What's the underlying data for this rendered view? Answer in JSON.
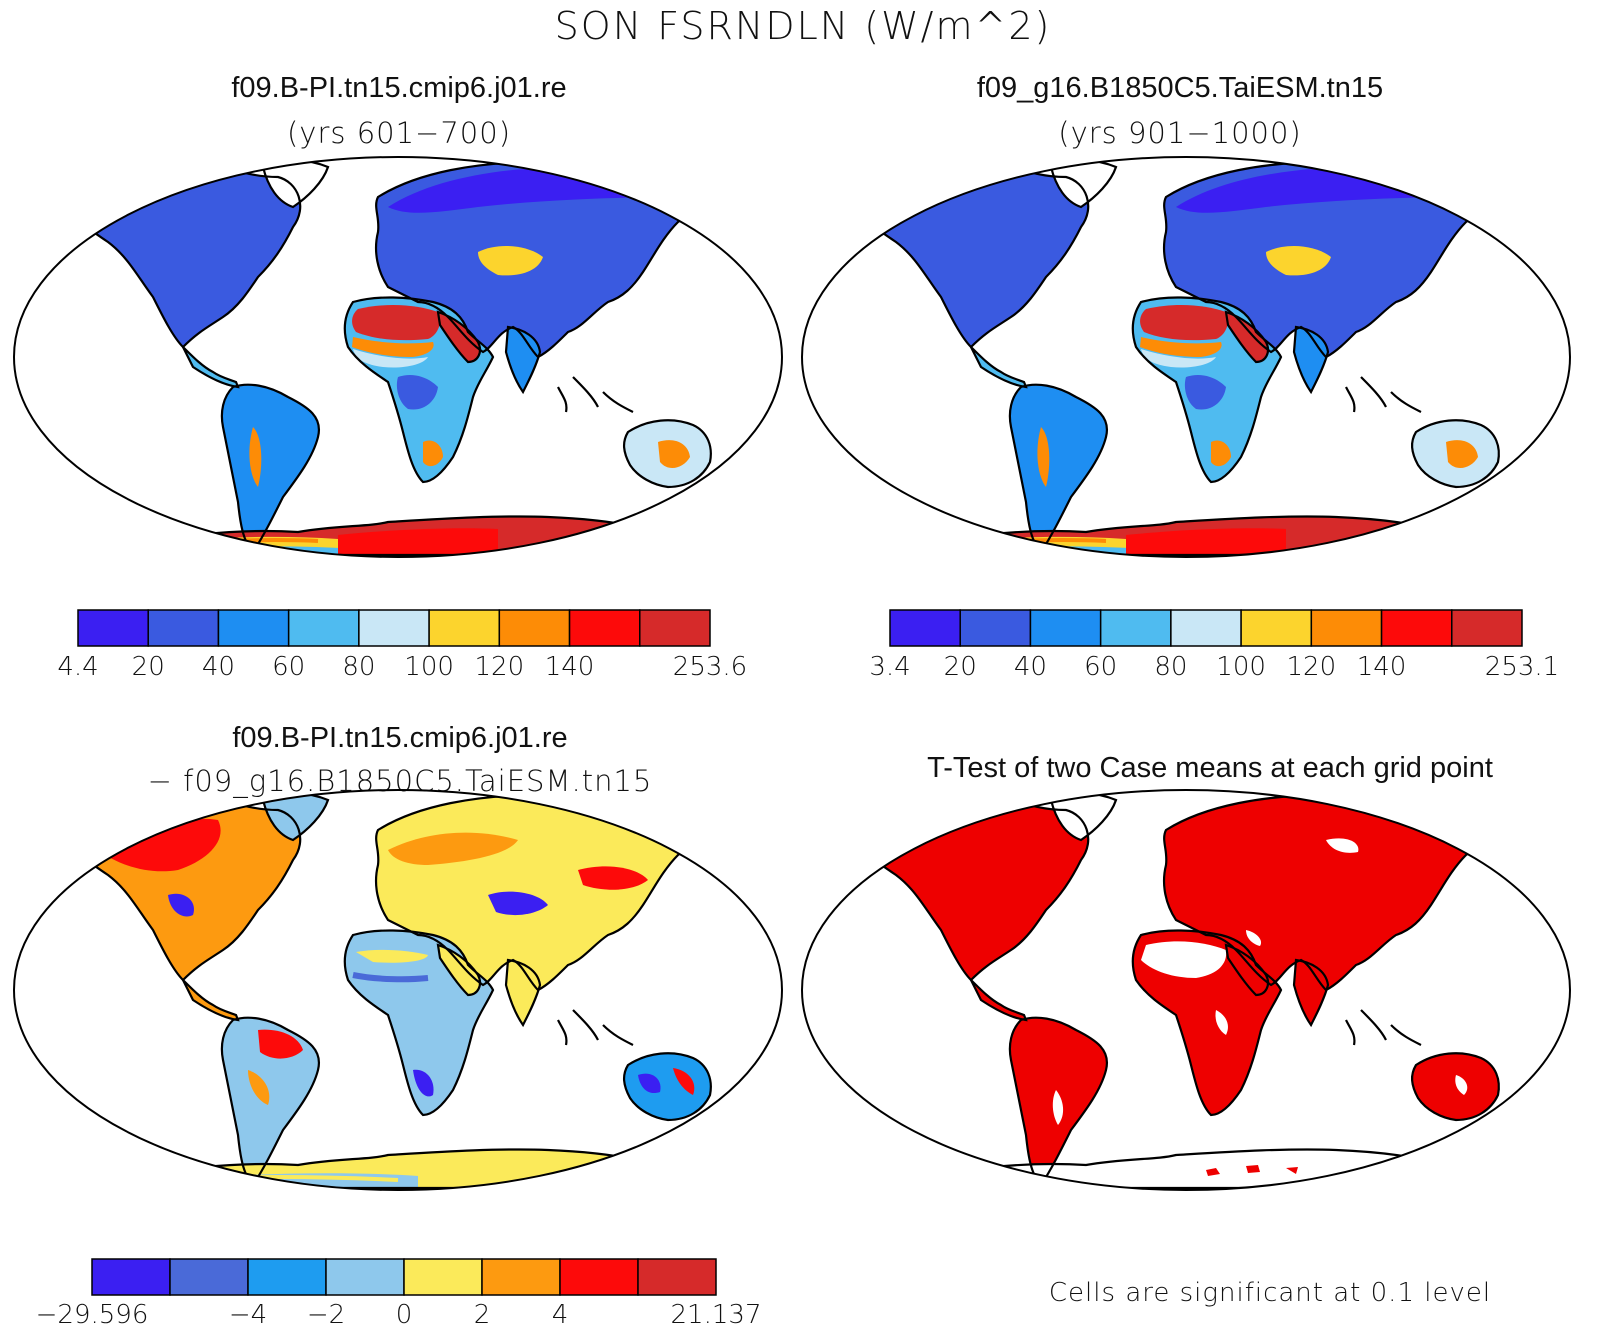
{
  "main_title": "SON FSRNDLN (W/m^2)",
  "panels": [
    {
      "title": "f09.B-PI.tn15.cmip6.j01.re",
      "subtitle": "(yrs 601−700)",
      "type": "mean"
    },
    {
      "title": "f09_g16.B1850C5.TaiESM.tn15",
      "subtitle": "(yrs 901−1000)",
      "type": "mean"
    },
    {
      "title": "f09.B-PI.tn15.cmip6.j01.re",
      "subtitle": "− f09_g16.B1850C5.TaiESM.tn15",
      "type": "difference"
    },
    {
      "title": "T-Test of two Case means at each grid point",
      "type": "ttest",
      "note": "Cells are significant at 0.1 level"
    }
  ],
  "colorbars": [
    {
      "colors": [
        "#3b1ff2",
        "#3a5ae0",
        "#1e8ef2",
        "#4fbbf0",
        "#c9e7f6",
        "#fcd42d",
        "#fd8c06",
        "#fd0a0a",
        "#d62a2a"
      ],
      "labels": [
        "4.4",
        "20",
        "40",
        "60",
        "80",
        "100",
        "120",
        "140",
        "253.6"
      ]
    },
    {
      "colors": [
        "#3b1ff2",
        "#3a5ae0",
        "#1e8ef2",
        "#4fbbf0",
        "#c9e7f6",
        "#fcd42d",
        "#fd8c06",
        "#fd0a0a",
        "#d62a2a"
      ],
      "labels": [
        "3.4",
        "20",
        "40",
        "60",
        "80",
        "100",
        "120",
        "140",
        "253.1"
      ]
    },
    {
      "colors": [
        "#3b1ff2",
        "#4a6ad8",
        "#1e9cf0",
        "#8ec8ec",
        "#fbea5a",
        "#fd9a10",
        "#fd0a0a",
        "#d62a2a"
      ],
      "labels": [
        "−29.596",
        "−4",
        "−2",
        "0",
        "2",
        "4",
        "21.137"
      ]
    }
  ]
}
